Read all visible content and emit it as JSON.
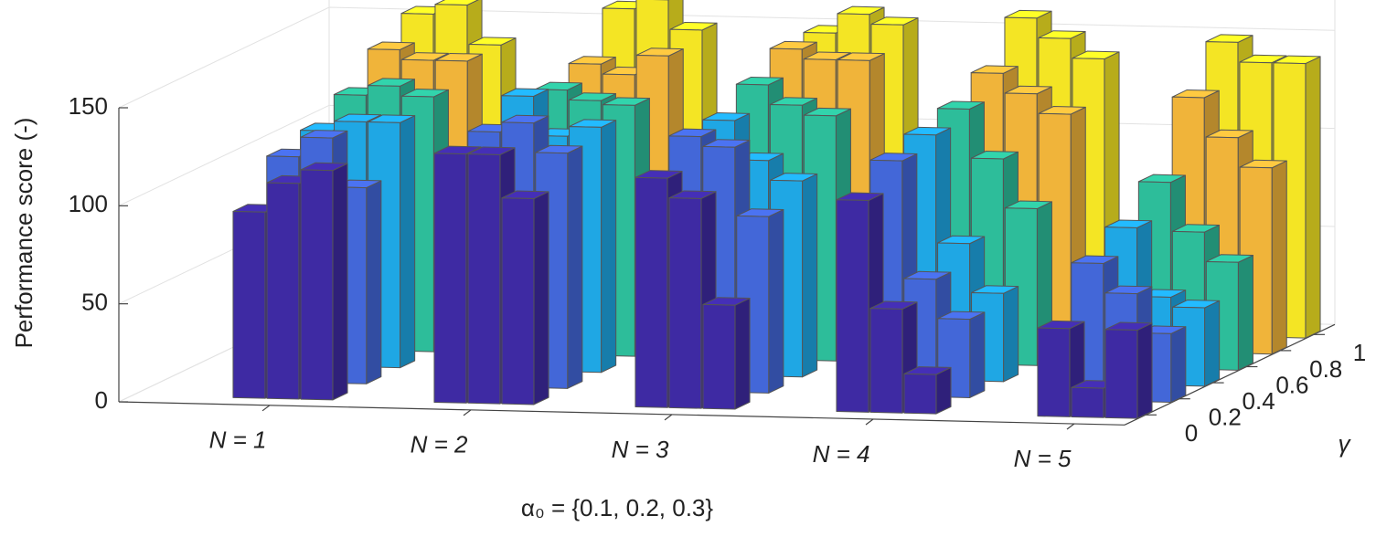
{
  "chart_data": {
    "type": "bar3d",
    "y_label": "Performance score (-)",
    "x_label": "α₀ = {0.1, 0.2, 0.3}",
    "depth_label": "γ",
    "categories": [
      "N = 1",
      "N = 2",
      "N = 3",
      "N = 4",
      "N = 5"
    ],
    "depth_ticks": [
      0,
      0.2,
      0.4,
      0.6,
      0.8,
      1
    ],
    "ylim": [
      0,
      150
    ],
    "yticks": [
      0,
      50,
      100,
      150
    ],
    "grid": true,
    "series": [
      {
        "color": "#3e2aa3",
        "values": [
          [
            95,
            110,
            117
          ],
          [
            127,
            127,
            105
          ],
          [
            117,
            107,
            53
          ],
          [
            108,
            53,
            20
          ],
          [
            45,
            15,
            45
          ]
        ]
      },
      {
        "color": "#4367d8",
        "values": [
          [
            115,
            125,
            100
          ],
          [
            130,
            135,
            120
          ],
          [
            130,
            125,
            90
          ],
          [
            120,
            60,
            40
          ],
          [
            70,
            55,
            35
          ]
        ]
      },
      {
        "color": "#1fa7e4",
        "values": [
          [
            120,
            125,
            125
          ],
          [
            140,
            120,
            125
          ],
          [
            130,
            110,
            100
          ],
          [
            125,
            70,
            45
          ],
          [
            80,
            45,
            40
          ]
        ]
      },
      {
        "color": "#2dbd9a",
        "values": [
          [
            130,
            135,
            130
          ],
          [
            135,
            130,
            128
          ],
          [
            140,
            130,
            125
          ],
          [
            130,
            105,
            80
          ],
          [
            95,
            70,
            55
          ]
        ]
      },
      {
        "color": "#f0b43a",
        "values": [
          [
            145,
            140,
            140
          ],
          [
            140,
            135,
            145
          ],
          [
            150,
            145,
            145
          ],
          [
            140,
            130,
            120
          ],
          [
            130,
            110,
            95
          ]
        ]
      },
      {
        "color": "#f4e524",
        "values": [
          [
            155,
            160,
            140
          ],
          [
            160,
            165,
            150
          ],
          [
            150,
            160,
            155
          ],
          [
            160,
            150,
            140
          ],
          [
            150,
            140,
            140
          ]
        ]
      }
    ]
  }
}
